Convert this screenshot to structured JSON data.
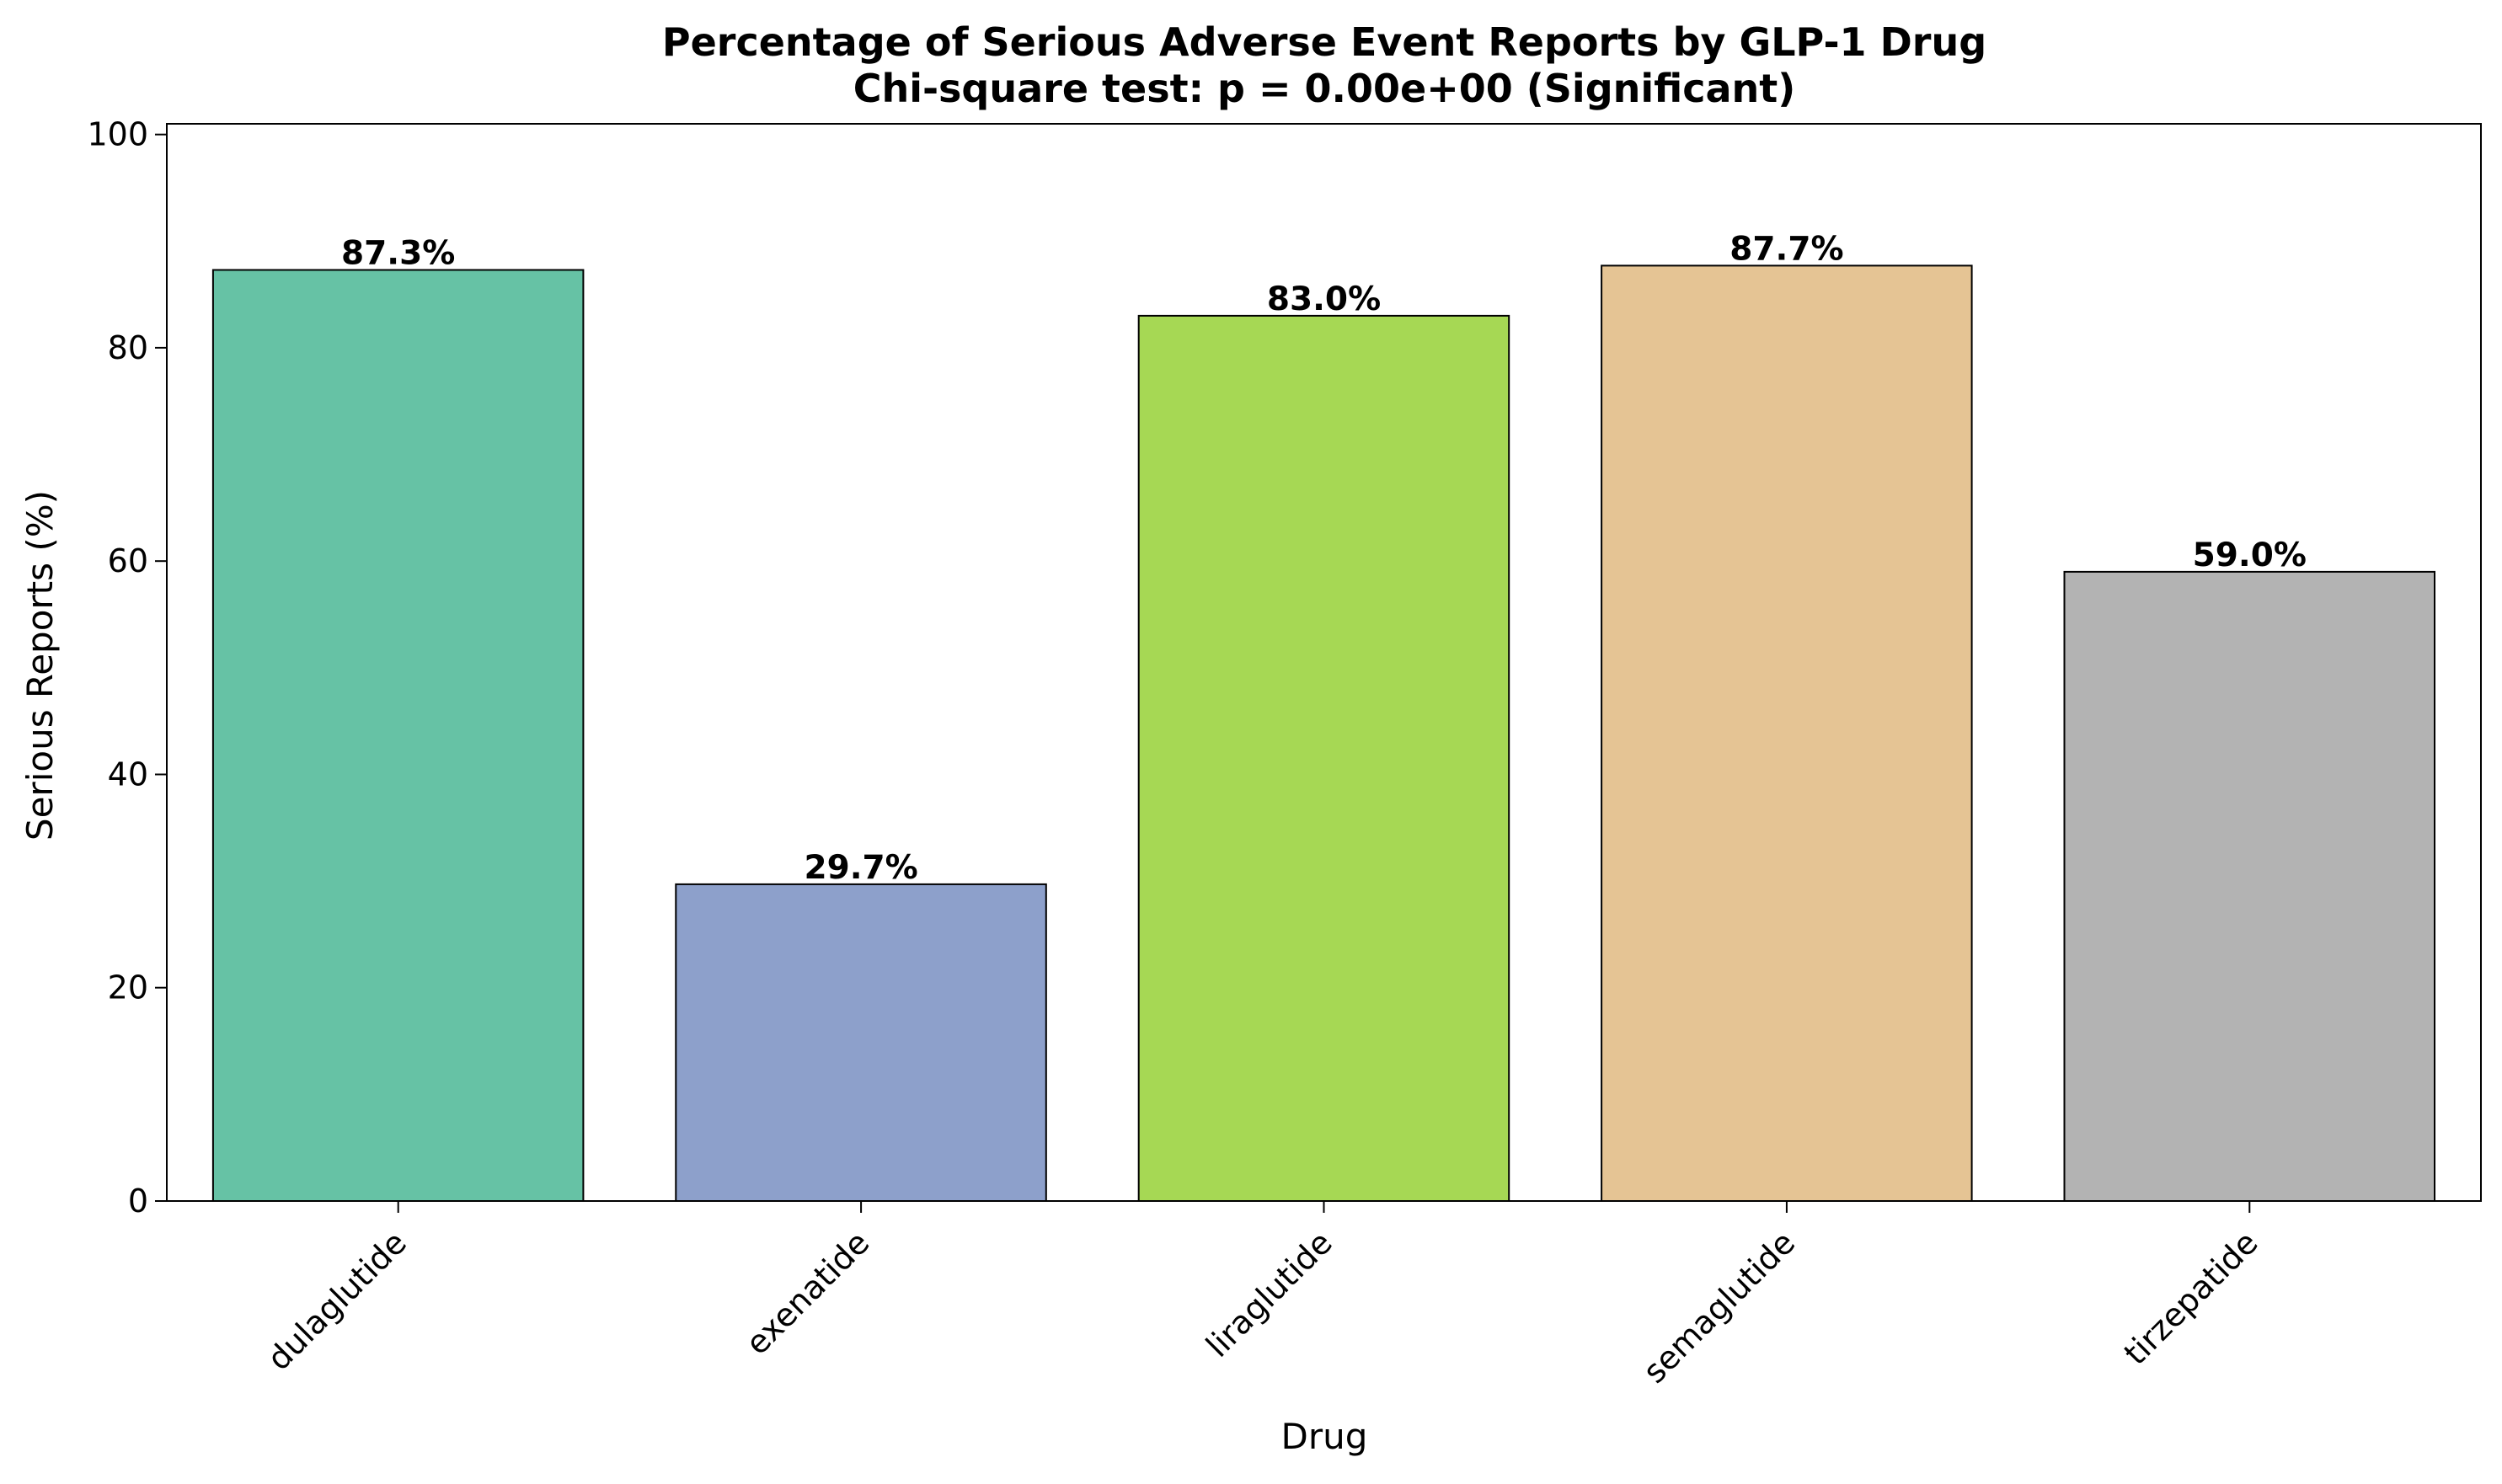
{
  "chart_data": {
    "type": "bar",
    "title": "Percentage of Serious Adverse Event Reports by GLP-1 Drug",
    "subtitle": "Chi-square test: p = 0.00e+00 (Significant)",
    "xlabel": "Drug",
    "ylabel": "Serious Reports (%)",
    "categories": [
      "dulaglutide",
      "exenatide",
      "liraglutide",
      "semaglutide",
      "tirzepatide"
    ],
    "values": [
      87.3,
      29.7,
      83.0,
      87.7,
      59.0
    ],
    "data_labels": [
      "87.3%",
      "29.7%",
      "83.0%",
      "87.7%",
      "59.0%"
    ],
    "colors": [
      "#66c2a5",
      "#8da0cb",
      "#a6d854",
      "#e5c494",
      "#b3b3b3"
    ],
    "ylim": [
      0,
      101
    ],
    "yticks": [
      0,
      20,
      40,
      60,
      80,
      100
    ],
    "ytick_labels": [
      "0",
      "20",
      "40",
      "60",
      "80",
      "100"
    ],
    "grid": false,
    "legend": "none"
  }
}
